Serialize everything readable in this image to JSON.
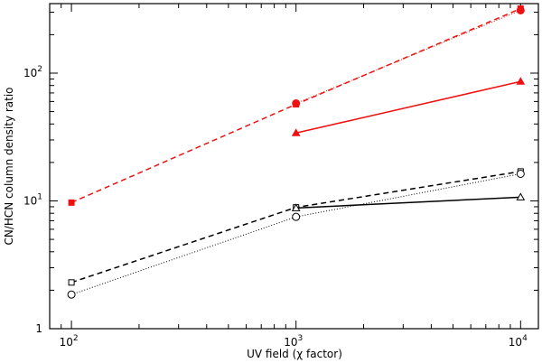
{
  "chart_data": {
    "type": "line",
    "xscale": "log",
    "yscale": "log",
    "xlim": [
      80,
      12000
    ],
    "ylim": [
      1,
      350
    ],
    "xlabel_main": "UV field (",
    "xlabel_symbol": "χ",
    "xlabel_end": " factor)",
    "ylabel": "CN/HCN column density ratio",
    "grid": false,
    "x_ticks": [
      {
        "base": "10",
        "exp": "2",
        "value": 100
      },
      {
        "base": "10",
        "exp": "3",
        "value": 1000
      },
      {
        "base": "10",
        "exp": "4",
        "value": 10000
      }
    ],
    "y_ticks": [
      {
        "base": "1",
        "exp": "",
        "value": 1
      },
      {
        "base": "10",
        "exp": "1",
        "value": 10
      },
      {
        "base": "10",
        "exp": "2",
        "value": 100
      }
    ],
    "series": [
      {
        "color": "#000000",
        "dash": "6,4",
        "marker": "square",
        "x": [
          100,
          1000,
          10000
        ],
        "y": [
          2.3,
          8.9,
          17.0
        ]
      },
      {
        "color": "#000000",
        "dash": "1,2",
        "marker": "circle",
        "x": [
          100,
          1000,
          10000
        ],
        "y": [
          1.85,
          7.5,
          16.3
        ]
      },
      {
        "color": "#000000",
        "dash": "",
        "marker": "triangle",
        "x": [
          1000,
          10000
        ],
        "y": [
          8.8,
          10.7
        ]
      },
      {
        "color": "#ee1111",
        "dash": "6,4",
        "marker": "square-filled",
        "x": [
          100,
          1000,
          10000
        ],
        "y": [
          9.7,
          57,
          320
        ]
      },
      {
        "color": "#ee1111",
        "dash": "1,2",
        "marker": "circle-filled",
        "x": [
          1000,
          10000
        ],
        "y": [
          58,
          310
        ]
      },
      {
        "color": "#ee1111",
        "dash": "",
        "marker": "triangle-filled",
        "x": [
          1000,
          10000
        ],
        "y": [
          34,
          86
        ]
      }
    ]
  }
}
